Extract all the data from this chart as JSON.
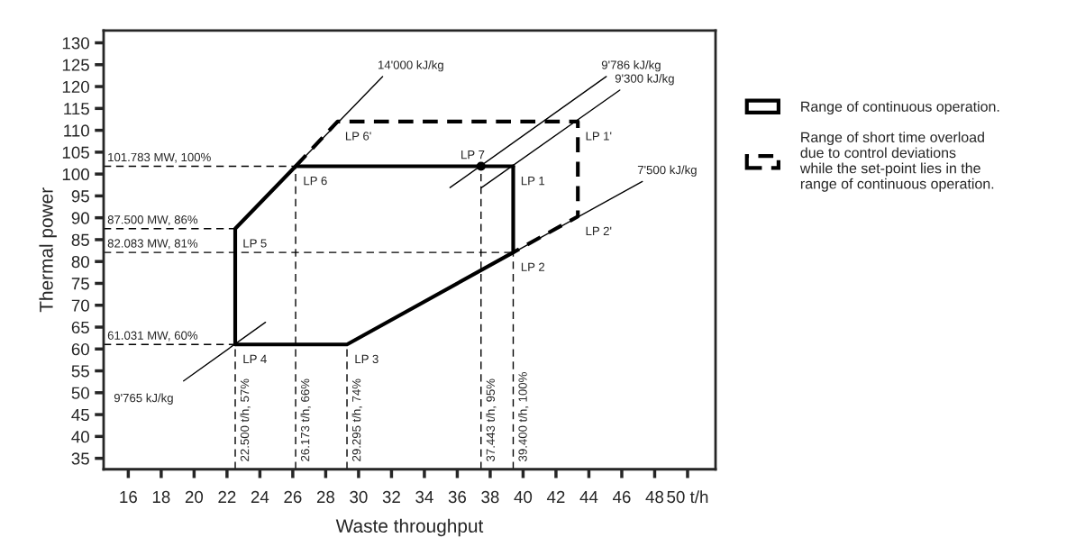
{
  "chart_data": {
    "type": "line",
    "xlabel": "Waste throughput",
    "ylabel": "Thermal power",
    "xlim": [
      14.5,
      51.7
    ],
    "ylim": [
      32.5,
      132.8
    ],
    "xticks": [
      16,
      18,
      20,
      22,
      24,
      26,
      28,
      30,
      32,
      34,
      36,
      38,
      40,
      42,
      44,
      46,
      48,
      {
        "value": 50,
        "label": "50 t/h"
      }
    ],
    "yticks": [
      35,
      40,
      45,
      50,
      55,
      60,
      65,
      70,
      75,
      80,
      85,
      90,
      95,
      100,
      105,
      110,
      115,
      120,
      125,
      130
    ],
    "legend": "right",
    "series": [
      {
        "x": [
          14.5,
          26.173
        ],
        "values": [
          101.783,
          101.783
        ],
        "color": "#000000",
        "line_style": "dashed"
      },
      {
        "x": [
          14.5,
          22.5
        ],
        "values": [
          87.5,
          87.5
        ],
        "color": "#000000",
        "line_style": "dashed"
      },
      {
        "x": [
          14.5,
          39.4
        ],
        "values": [
          82.083,
          82.083
        ],
        "color": "#000000",
        "line_style": "dashed"
      },
      {
        "x": [
          14.5,
          22.5
        ],
        "values": [
          61.031,
          61.031
        ],
        "color": "#000000",
        "line_style": "dashed"
      },
      {
        "x": [
          22.5,
          22.5
        ],
        "values": [
          32.5,
          87.5
        ],
        "color": "#000000",
        "line_style": "dashed"
      },
      {
        "x": [
          26.173,
          26.173
        ],
        "values": [
          32.5,
          101.783
        ],
        "color": "#000000",
        "line_style": "dashed"
      },
      {
        "x": [
          29.295,
          29.295
        ],
        "values": [
          32.5,
          61.031
        ],
        "color": "#000000",
        "line_style": "dashed"
      },
      {
        "x": [
          37.443,
          37.443
        ],
        "values": [
          32.5,
          101.783
        ],
        "color": "#000000",
        "line_style": "dashed"
      },
      {
        "x": [
          39.4,
          39.4
        ],
        "values": [
          32.5,
          82.083
        ],
        "color": "#000000",
        "line_style": "dashed"
      },
      {
        "x": [
          26.173,
          31.46
        ],
        "values": [
          101.783,
          122.3
        ],
        "color": "#000000",
        "line_style": "solid"
      },
      {
        "x": [
          35.56,
          45.06
        ],
        "values": [
          96.9,
          122.3
        ],
        "color": "#000000",
        "line_style": "solid"
      },
      {
        "x": [
          37.48,
          45.88
        ],
        "values": [
          96.9,
          119.2
        ],
        "color": "#000000",
        "line_style": "solid"
      },
      {
        "x": [
          29.295,
          47.25
        ],
        "values": [
          61.031,
          98.3
        ],
        "color": "#000000",
        "line_style": "solid"
      },
      {
        "x": [
          19.36,
          24.34
        ],
        "values": [
          52.7,
          66.1
        ],
        "color": "#000000",
        "line_style": "solid"
      },
      {
        "name": "Range of continuous operation.",
        "x": [
          22.5,
          29.295,
          39.4,
          39.4
        ],
        "values": [
          61.031,
          61.031,
          82.083,
          101.783
        ],
        "color": "#000000",
        "line_style": "solid"
      },
      {
        "x": [
          39.4,
          26.173,
          22.5,
          22.5
        ],
        "values": [
          101.783,
          101.783,
          87.5,
          61.031
        ],
        "color": "#000000",
        "line_style": "solid"
      },
      {
        "name": "Range of short time overload\ndue to control deviations\nwhile the set-point lies in the\nrange of continuous operation.",
        "x": [
          26.173,
          28.72,
          43.33,
          43.33,
          39.4
        ],
        "values": [
          101.783,
          112,
          112,
          90.3,
          82.083
        ],
        "color": "#000000",
        "line_style": "dashed"
      },
      {
        "type": "scatter",
        "x": [
          37.443
        ],
        "values": [
          101.783
        ],
        "color": "#000000",
        "marker": "circle"
      }
    ],
    "annotations": [
      {
        "text": "101.783 MW, 100%",
        "x": 14.5,
        "y": 101.783
      },
      {
        "text": "87.500 MW, 86%",
        "x": 14.5,
        "y": 87.5
      },
      {
        "text": "82.083 MW, 81%",
        "x": 14.5,
        "y": 82.083
      },
      {
        "text": "61.031 MW, 60%",
        "x": 14.5,
        "y": 61.031
      },
      {
        "text": "22.500 t/h, 57%",
        "x": 22.5,
        "y": 32.5
      },
      {
        "text": "26.173 t/h, 66%",
        "x": 26.173,
        "y": 32.5
      },
      {
        "text": "29.295 t/h, 74%",
        "x": 29.295,
        "y": 32.5
      },
      {
        "text": "37.443 t/h, 95%",
        "x": 37.443,
        "y": 32.5
      },
      {
        "text": "39.400 t/h, 100%",
        "x": 39.4,
        "y": 32.5
      },
      {
        "text": "14'000 kJ/kg",
        "x": 31.46,
        "y": 122.3
      },
      {
        "text": "9'786 kJ/kg",
        "x": 45.06,
        "y": 122.3
      },
      {
        "text": "9'300 kJ/kg",
        "x": 45.88,
        "y": 119.2
      },
      {
        "text": "7'500 kJ/kg",
        "x": 47.25,
        "y": 98.3
      },
      {
        "text": "9'765 kJ/kg",
        "x": 19.36,
        "y": 52.7
      },
      {
        "text": "LP 6'",
        "x": 28.72,
        "y": 112
      },
      {
        "text": "LP 6",
        "x": 26.173,
        "y": 101.783
      },
      {
        "text": "LP 5",
        "x": 22.5,
        "y": 87.5
      },
      {
        "text": "LP 4",
        "x": 22.5,
        "y": 61.031
      },
      {
        "text": "LP 3",
        "x": 29.295,
        "y": 61.031
      },
      {
        "text": "LP 7",
        "x": 37.443,
        "y": 101.783
      },
      {
        "text": "LP 1",
        "x": 39.4,
        "y": 101.783
      },
      {
        "text": "LP 1'",
        "x": 43.33,
        "y": 112
      },
      {
        "text": "LP 2'",
        "x": 43.33,
        "y": 90.3
      },
      {
        "text": "LP 2",
        "x": 39.4,
        "y": 82.083
      }
    ]
  }
}
